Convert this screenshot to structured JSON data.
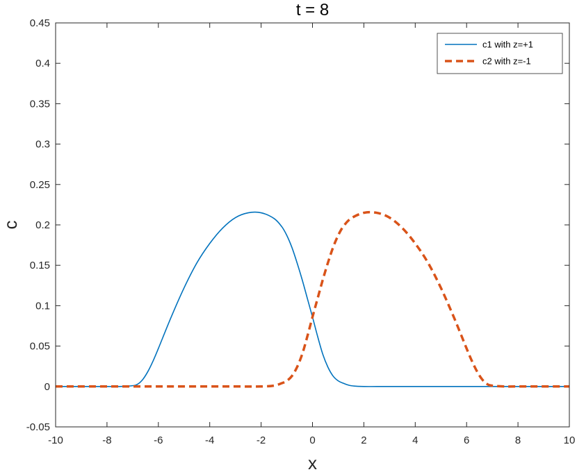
{
  "chart_data": {
    "type": "line",
    "title": "t = 8",
    "xlabel": "x",
    "ylabel": "c",
    "xlim": [
      -10,
      10
    ],
    "ylim": [
      -0.05,
      0.45
    ],
    "xticks": [
      -10,
      -8,
      -6,
      -4,
      -2,
      0,
      2,
      4,
      6,
      8,
      10
    ],
    "yticks": [
      -0.05,
      0,
      0.05,
      0.1,
      0.15,
      0.2,
      0.25,
      0.3,
      0.35,
      0.4,
      0.45
    ],
    "xtick_labels": [
      "-10",
      "-8",
      "-6",
      "-4",
      "-2",
      "0",
      "2",
      "4",
      "6",
      "8",
      "10"
    ],
    "ytick_labels": [
      "-0.05",
      "0",
      "0.05",
      "0.1",
      "0.15",
      "0.2",
      "0.25",
      "0.3",
      "0.35",
      "0.4",
      "0.45"
    ],
    "grid": false,
    "legend_position": "top-right",
    "series": [
      {
        "name": "c1 with z=+1",
        "color": "#0072BD",
        "style": "solid",
        "x": [
          -10,
          -8,
          -7.5,
          -7,
          -6.8,
          -6.6,
          -6.4,
          -6.2,
          -6,
          -5.5,
          -5,
          -4.5,
          -4,
          -3.5,
          -3,
          -2.5,
          -2,
          -1.5,
          -1.2,
          -1,
          -0.8,
          -0.6,
          -0.4,
          -0.2,
          0,
          0.2,
          0.4,
          0.6,
          0.8,
          1,
          1.2,
          1.5,
          2,
          3,
          5,
          8,
          10
        ],
        "y": [
          0,
          0,
          0,
          0.001,
          0.003,
          0.009,
          0.019,
          0.032,
          0.047,
          0.086,
          0.122,
          0.153,
          0.177,
          0.196,
          0.209,
          0.215,
          0.215,
          0.208,
          0.198,
          0.187,
          0.172,
          0.153,
          0.132,
          0.109,
          0.086,
          0.062,
          0.04,
          0.024,
          0.013,
          0.007,
          0.004,
          0.001,
          0,
          0,
          0,
          0,
          0
        ]
      },
      {
        "name": "c2 with z=-1",
        "color": "#D95319",
        "style": "dashed",
        "x": [
          -10,
          -5,
          -3,
          -2,
          -1.5,
          -1.2,
          -1,
          -0.8,
          -0.6,
          -0.4,
          -0.2,
          0,
          0.2,
          0.4,
          0.6,
          0.8,
          1,
          1.2,
          1.5,
          2,
          2.5,
          3,
          3.5,
          4,
          4.5,
          5,
          5.5,
          6,
          6.2,
          6.4,
          6.6,
          6.8,
          7,
          7.5,
          8,
          10
        ],
        "y": [
          0,
          0,
          0,
          0,
          0.001,
          0.004,
          0.007,
          0.013,
          0.024,
          0.04,
          0.062,
          0.086,
          0.109,
          0.132,
          0.153,
          0.172,
          0.187,
          0.198,
          0.208,
          0.215,
          0.215,
          0.209,
          0.196,
          0.177,
          0.153,
          0.122,
          0.086,
          0.047,
          0.032,
          0.019,
          0.009,
          0.003,
          0.001,
          0,
          0,
          0
        ]
      }
    ]
  }
}
